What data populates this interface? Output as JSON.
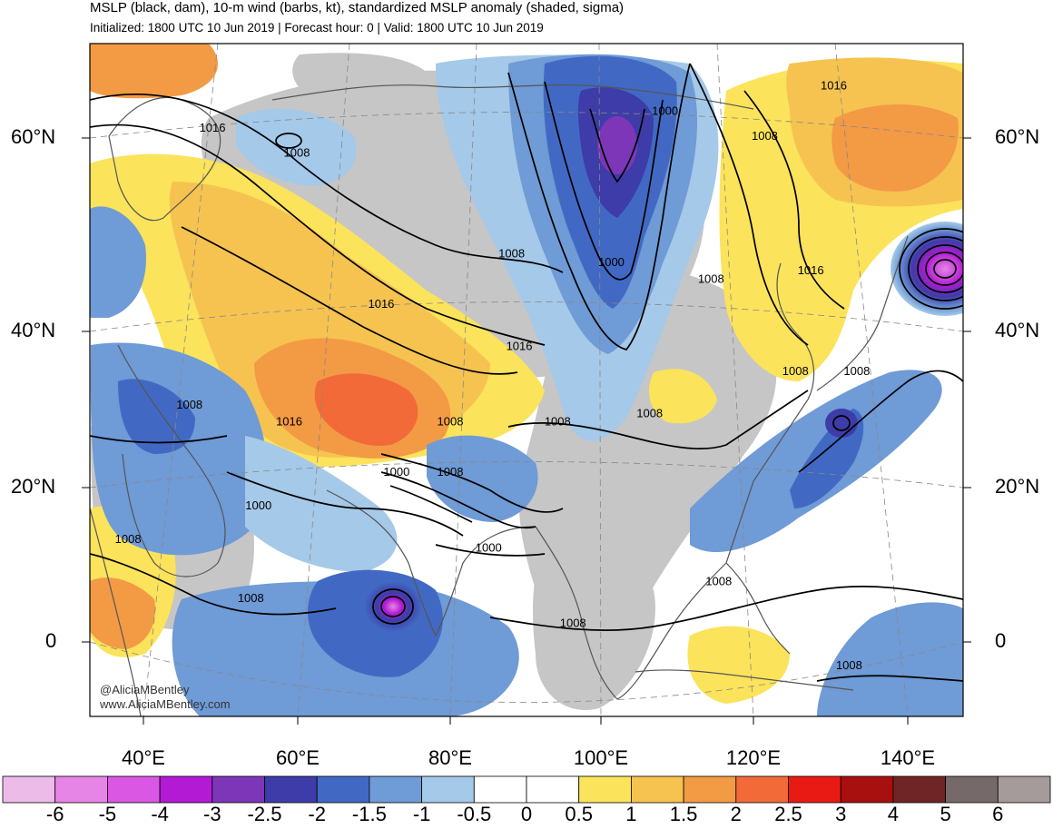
{
  "header": {
    "title": "MSLP (black, dam), 10-m wind (barbs, kt), standardized MSLP anomaly (shaded, sigma)",
    "subtitle": "Initialized: 1800 UTC 10 Jun 2019 | Forecast hour: 0 | Valid: 1800 UTC 10 Jun 2019"
  },
  "axes": {
    "lat_labels_left": [
      "60°N",
      "40°N",
      "20°N",
      "0"
    ],
    "lat_labels_right": [
      "60°N",
      "40°N",
      "20°N",
      "0"
    ],
    "lon_labels": [
      "40°E",
      "60°E",
      "80°E",
      "100°E",
      "120°E",
      "140°E"
    ]
  },
  "colorbar": {
    "colors": [
      "#ecbbe8",
      "#e685e6",
      "#d957e2",
      "#b21ad4",
      "#7c36b7",
      "#3d3ca8",
      "#4169c4",
      "#6f9bd6",
      "#a5c9e8",
      "#ffffff",
      "#ffffff",
      "#fbe35b",
      "#f6c350",
      "#f39a45",
      "#f26a38",
      "#e91a14",
      "#a80f0f",
      "#6f2525",
      "#75696a",
      "#a69b9b"
    ],
    "ticks": [
      "-6",
      "-5",
      "-4",
      "-3",
      "-2.5",
      "-2",
      "-1.5",
      "-1",
      "-0.5",
      "0",
      "0.5",
      "1",
      "1.5",
      "2",
      "2.5",
      "3",
      "4",
      "5",
      "6"
    ]
  },
  "contour_labels": [
    {
      "text": "1016",
      "lon": 49,
      "lat": 61
    },
    {
      "text": "1008",
      "lon": 60,
      "lat": 58
    },
    {
      "text": "1000",
      "lon": 108,
      "lat": 63
    },
    {
      "text": "1016",
      "lon": 130,
      "lat": 66
    },
    {
      "text": "1008",
      "lon": 121,
      "lat": 60
    },
    {
      "text": "1008",
      "lon": 88,
      "lat": 46
    },
    {
      "text": "1000",
      "lon": 101,
      "lat": 45
    },
    {
      "text": "1008",
      "lon": 114,
      "lat": 43
    },
    {
      "text": "1016",
      "lon": 127,
      "lat": 44
    },
    {
      "text": "1016",
      "lon": 71,
      "lat": 40
    },
    {
      "text": "1016",
      "lon": 89,
      "lat": 35
    },
    {
      "text": "1008",
      "lon": 125,
      "lat": 32
    },
    {
      "text": "1008",
      "lon": 133,
      "lat": 32
    },
    {
      "text": "1008",
      "lon": 46,
      "lat": 28
    },
    {
      "text": "1016",
      "lon": 59,
      "lat": 26
    },
    {
      "text": "1008",
      "lon": 80,
      "lat": 26
    },
    {
      "text": "1008",
      "lon": 94,
      "lat": 26
    },
    {
      "text": "1008",
      "lon": 106,
      "lat": 27
    },
    {
      "text": "1000",
      "lon": 73,
      "lat": 20
    },
    {
      "text": "1008",
      "lon": 80,
      "lat": 20
    },
    {
      "text": "1000",
      "lon": 55,
      "lat": 16
    },
    {
      "text": "1008",
      "lon": 38,
      "lat": 12
    },
    {
      "text": "1000",
      "lon": 85,
      "lat": 11
    },
    {
      "text": "1008",
      "lon": 54,
      "lat": 5
    },
    {
      "text": "1008",
      "lon": 115,
      "lat": 7
    },
    {
      "text": "1008",
      "lon": 96,
      "lat": 2
    },
    {
      "text": "1008",
      "lon": 132,
      "lat": -3
    }
  ],
  "credit": {
    "handle": "@AliciaMBentley",
    "site": "www.AliciaMBentley.com"
  }
}
